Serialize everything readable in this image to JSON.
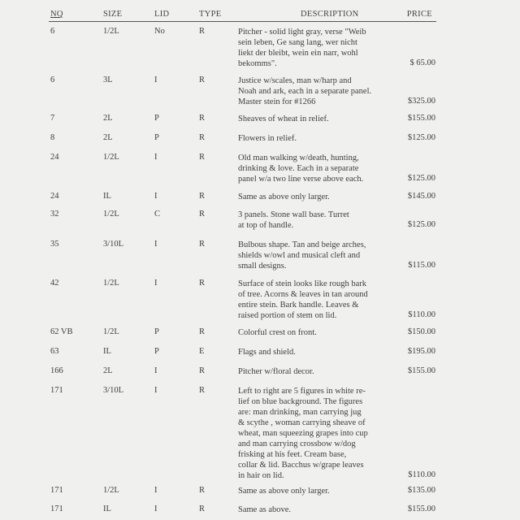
{
  "header": {
    "nq": "NQ",
    "size": "SIZE",
    "lid": "LID",
    "type": "TYPE",
    "description": "DESCRIPTION",
    "price": "PRICE"
  },
  "rows": [
    {
      "nq": "6",
      "size": "1/2L",
      "lid": "No",
      "type": "R",
      "description": [
        "Pitcher - solid light gray, verse \"Weib",
        "sein leben, Ge sang lang, wer nicht",
        "liekt der bleibt, wein ein narr, wohl",
        "bekomms\"."
      ],
      "price": "$ 65.00"
    },
    {
      "nq": "6",
      "size": "3L",
      "lid": "I",
      "type": "R",
      "description": [
        "Justice w/scales, man w/harp and",
        "Noah and ark, each in a separate panel.",
        "Master stein for #1266"
      ],
      "price": "$325.00"
    },
    {
      "nq": "7",
      "size": "2L",
      "lid": "P",
      "type": "R",
      "description": [
        "Sheaves of wheat in relief."
      ],
      "price": "$155.00"
    },
    {
      "nq": "8",
      "size": "2L",
      "lid": "P",
      "type": "R",
      "description": [
        "Flowers in relief."
      ],
      "price": "$125.00"
    },
    {
      "nq": "24",
      "size": "1/2L",
      "lid": "I",
      "type": "R",
      "description": [
        "Old man walking w/death, hunting,",
        "drinking & love.  Each in a separate",
        "panel w/a two line verse above each."
      ],
      "price": "$125.00"
    },
    {
      "nq": "24",
      "size": "IL",
      "lid": "I",
      "type": "R",
      "description": [
        "Same as above only larger."
      ],
      "price": "$145.00"
    },
    {
      "nq": "32",
      "size": "1/2L",
      "lid": "C",
      "type": "R",
      "description": [
        "3 panels.  Stone wall base.  Turret",
        "at top of handle."
      ],
      "price": "$125.00"
    },
    {
      "nq": "35",
      "size": "3/10L",
      "lid": "I",
      "type": "R",
      "description": [
        "Bulbous shape.  Tan and beige arches,",
        "shields w/owl and musical cleft and",
        "small designs."
      ],
      "price": "$115.00"
    },
    {
      "nq": "42",
      "size": "1/2L",
      "lid": "I",
      "type": "R",
      "description": [
        "Surface of stein looks like rough bark",
        "of tree.  Acorns & leaves in tan around",
        "entire stein.  Bark handle.  Leaves &",
        "raised portion of stem on lid."
      ],
      "price": "$110.00"
    },
    {
      "nq": "62 VB",
      "size": "1/2L",
      "lid": "P",
      "type": "R",
      "description": [
        "Colorful crest on front."
      ],
      "price": "$150.00"
    },
    {
      "nq": "63",
      "size": "IL",
      "lid": "P",
      "type": "E",
      "description": [
        "Flags and shield."
      ],
      "price": "$195.00"
    },
    {
      "nq": "166",
      "size": "2L",
      "lid": "I",
      "type": "R",
      "description": [
        "Pitcher w/floral decor."
      ],
      "price": "$155.00"
    },
    {
      "nq": "171",
      "size": "3/10L",
      "lid": "I",
      "type": "R",
      "description": [
        "Left to right are 5 figures in white re-",
        "lief on blue background.  The figures",
        "are: man drinking, man carrying jug",
        "& scythe ,  woman carrying sheave of",
        "wheat, man squeezing grapes into cup",
        "and man carrying crossbow w/dog",
        "frisking at his feet.  Cream base,",
        "collar & lid.  Bacchus w/grape leaves",
        "in hair on lid."
      ],
      "price": "$110.00"
    },
    {
      "nq": "171",
      "size": "1/2L",
      "lid": "I",
      "type": "R",
      "description": [
        "Same as above only larger."
      ],
      "price": "$135.00"
    },
    {
      "nq": "171",
      "size": "IL",
      "lid": "I",
      "type": "R",
      "description": [
        "Same as above."
      ],
      "price": "$155.00"
    }
  ]
}
